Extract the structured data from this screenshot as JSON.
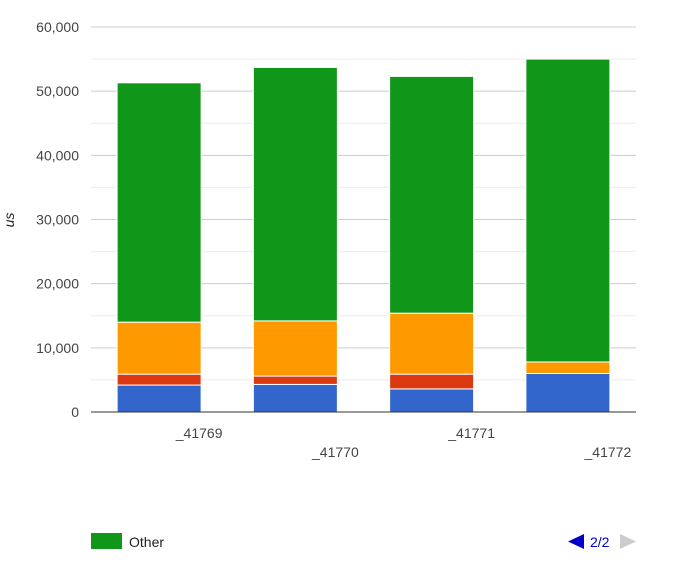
{
  "chart_data": {
    "type": "bar",
    "stacked": true,
    "categories": [
      "_41769",
      "_41770",
      "_41771",
      "_41772"
    ],
    "series": [
      {
        "color": "#3366cc",
        "values": [
          4200,
          4300,
          3600,
          6000
        ]
      },
      {
        "color": "#dc3912",
        "values": [
          1700,
          1300,
          2300,
          0
        ]
      },
      {
        "color": "#ff9900",
        "values": [
          8100,
          8600,
          9500,
          1800
        ]
      },
      {
        "name": "Other",
        "color": "#109618",
        "values": [
          37300,
          39500,
          36900,
          47200
        ]
      }
    ],
    "ylabel": "us",
    "ylim": [
      0,
      60000
    ],
    "yticks": [
      "0",
      "10,000",
      "20,000",
      "30,000",
      "40,000",
      "50,000",
      "60,000"
    ],
    "grid": true,
    "legend": {
      "position": "bottom-left",
      "entries": [
        {
          "label": "Other",
          "color": "#109618"
        }
      ]
    },
    "pager": {
      "label": "2/2"
    }
  }
}
